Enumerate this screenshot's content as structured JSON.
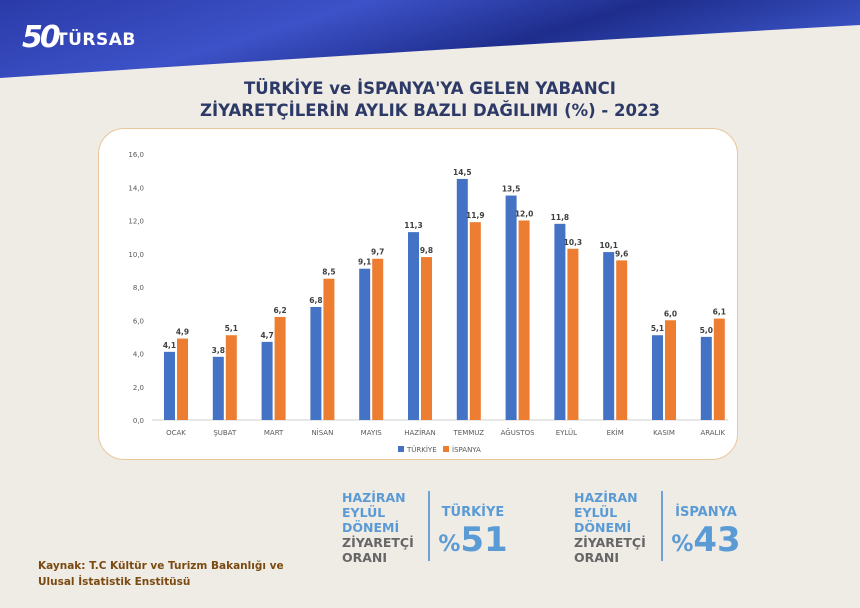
{
  "header": {
    "logo_number": "50",
    "logo_text": "TÜRSAB"
  },
  "title": [
    "TÜRKİYE ve İSPANYA'YA GELEN YABANCI",
    "ZİYARETÇİLERİN AYLIK BAZLI DAĞILIMI (%) - 2023"
  ],
  "chart_data": {
    "type": "bar",
    "title": "TÜRKİYE ve İSPANYA'YA GELEN YABANCI ZİYARETÇİLERİN AYLIK BAZLI DAĞILIMI (%) - 2023",
    "categories": [
      "OCAK",
      "ŞUBAT",
      "MART",
      "NİSAN",
      "MAYIS",
      "HAZİRAN",
      "TEMMUZ",
      "AĞUSTOS",
      "EYLÜL",
      "EKİM",
      "KASIM",
      "ARALIK"
    ],
    "series": [
      {
        "name": "TÜRKİYE",
        "color": "#4472c4",
        "values": [
          4.1,
          3.8,
          4.7,
          6.8,
          9.1,
          11.3,
          14.5,
          13.5,
          11.8,
          10.1,
          5.1,
          5.0
        ]
      },
      {
        "name": "İSPANYA",
        "color": "#ed7d31",
        "values": [
          4.9,
          5.1,
          6.2,
          8.5,
          9.7,
          9.8,
          11.9,
          12.0,
          10.3,
          9.6,
          6.0,
          6.1
        ]
      }
    ],
    "ylim": [
      0,
      16
    ],
    "yticks": [
      "0,0",
      "2,0",
      "4,0",
      "6,0",
      "8,0",
      "10,0",
      "12,0",
      "14,0",
      "16,0"
    ],
    "grid": false,
    "legend": "bottom"
  },
  "stats": [
    {
      "period_lines": [
        "HAZİRAN",
        "EYLÜL",
        "DÖNEMİ"
      ],
      "label_lines": [
        "ZİYARETÇİ",
        "ORANI"
      ],
      "country": "TÜRKİYE",
      "pct_sign": "%",
      "value": "51"
    },
    {
      "period_lines": [
        "HAZİRAN",
        "EYLÜL",
        "DÖNEMİ"
      ],
      "label_lines": [
        "ZİYARETÇİ",
        "ORANI"
      ],
      "country": "İSPANYA",
      "pct_sign": "%",
      "value": "43"
    }
  ],
  "source": [
    "Kaynak: T.C Kültür ve Turizm Bakanlığı ve",
    "Ulusal İstatistik Enstitüsü"
  ]
}
